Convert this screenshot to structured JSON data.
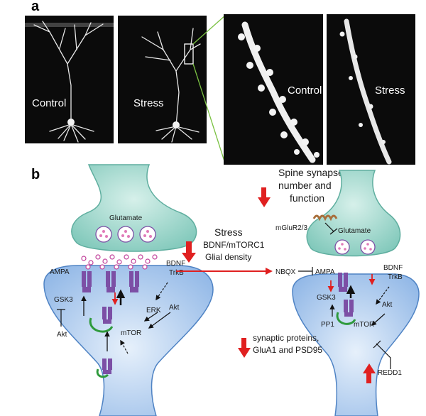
{
  "panel_a": {
    "letter": "a",
    "image_labels": [
      "Control",
      "Stress",
      "Control",
      "Stress"
    ]
  },
  "panel_b": {
    "letter": "b",
    "left": {
      "glutamate": "Glutamate",
      "ampa": "AMPA",
      "bdnf": "BDNF",
      "trkb": "TrkB",
      "gsk3": "GSK3",
      "erk": "ERK",
      "akt_right": "Akt",
      "akt_left": "Akt",
      "mtor": "mTOR"
    },
    "middle": {
      "stress": "Stress",
      "bdnf_mtorc1": "BDNF/mTORC1",
      "glial_density": "Glial density"
    },
    "right": {
      "spine_line1": "Spine synapse",
      "spine_line2": "number and",
      "spine_line3": "function",
      "mglur": "mGluR2/3",
      "glutamate": "Glutamate",
      "nbqx": "NBQX",
      "ampa": "AMPA",
      "bdnf": "BDNF",
      "trkb": "TrkB",
      "gsk3": "GSK3",
      "akt": "Akt",
      "pp1": "PP1",
      "mtor": "mTOR",
      "synaptic_line1": "synaptic proteins,",
      "synaptic_line2": "GluA1 and PSD95",
      "redd1": "REDD1"
    }
  },
  "colors": {
    "terminal_fill": "#a9dcd3",
    "spine_fill": "#b9d4f2",
    "spine_edge": "#4f83c4",
    "receptor": "#7c4fa5",
    "vesicle": "#e07ab8",
    "red_arrow": "#e02020",
    "green": "#2e9a3c",
    "micrograph_bg": "#0b0b0b"
  }
}
